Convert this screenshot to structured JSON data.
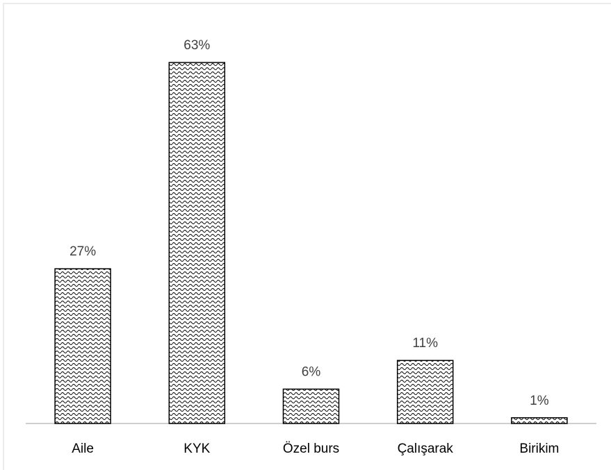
{
  "chart_data": {
    "type": "bar",
    "categories": [
      "Aile",
      "KYK",
      "Özel burs",
      "Çalışarak",
      "Birikim"
    ],
    "values": [
      27,
      63,
      6,
      11,
      1
    ],
    "value_labels": [
      "27%",
      "63%",
      "6%",
      "11%",
      "1%"
    ]
  }
}
